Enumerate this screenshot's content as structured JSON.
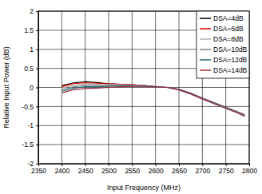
{
  "chart_data": {
    "type": "line",
    "x_label": "Input Frequency (MHz)",
    "y_label": "Relative Input Power (dB)",
    "x": [
      2400,
      2425,
      2450,
      2475,
      2500,
      2525,
      2550,
      2575,
      2600,
      2625,
      2650,
      2675,
      2700,
      2725,
      2750,
      2775,
      2790
    ],
    "series": [
      {
        "name": "DSA=4dB",
        "color": "#000000",
        "values": [
          0.05,
          0.12,
          0.15,
          0.13,
          0.1,
          0.08,
          0.07,
          0.05,
          0.02,
          0,
          -0.05,
          -0.15,
          -0.28,
          -0.4,
          -0.52,
          -0.64,
          -0.72
        ]
      },
      {
        "name": "DSA=6dB",
        "color": "#e00000",
        "values": [
          0.02,
          0.1,
          0.12,
          0.11,
          0.09,
          0.08,
          0.07,
          0.05,
          0.02,
          0,
          -0.06,
          -0.16,
          -0.29,
          -0.41,
          -0.53,
          -0.65,
          -0.73
        ]
      },
      {
        "name": "DSA=8dB",
        "color": "#b4b4b4",
        "values": [
          -0.02,
          0.06,
          0.09,
          0.08,
          0.07,
          0.07,
          0.06,
          0.05,
          0.02,
          0,
          -0.06,
          -0.16,
          -0.29,
          -0.41,
          -0.53,
          -0.65,
          -0.74
        ]
      },
      {
        "name": "DSA=10dB",
        "color": "#808080",
        "values": [
          -0.06,
          0.02,
          0.05,
          0.05,
          0.05,
          0.05,
          0.05,
          0.04,
          0.02,
          0,
          -0.06,
          -0.16,
          -0.29,
          -0.42,
          -0.54,
          -0.66,
          -0.75
        ]
      },
      {
        "name": "DSA=12dB",
        "color": "#1f6e7a",
        "values": [
          -0.1,
          -0.02,
          0.02,
          0.02,
          0.03,
          0.04,
          0.04,
          0.04,
          0.02,
          0,
          -0.06,
          -0.17,
          -0.3,
          -0.42,
          -0.54,
          -0.66,
          -0.75
        ]
      },
      {
        "name": "DSA=14dB",
        "color": "#a0283c",
        "values": [
          -0.14,
          -0.06,
          -0.03,
          -0.02,
          0,
          0.02,
          0.03,
          0.03,
          0.02,
          0,
          -0.06,
          -0.17,
          -0.3,
          -0.43,
          -0.55,
          -0.67,
          -0.76
        ]
      }
    ],
    "xlim": [
      2350,
      2800
    ],
    "xticks": [
      2350,
      2400,
      2450,
      2500,
      2550,
      2600,
      2650,
      2700,
      2750,
      2800
    ],
    "ylim": [
      -2,
      2
    ],
    "yticks": [
      -2,
      -1.5,
      -1,
      -0.5,
      0,
      0.5,
      1,
      1.5,
      2
    ],
    "grid": true,
    "legend": "upper right"
  }
}
